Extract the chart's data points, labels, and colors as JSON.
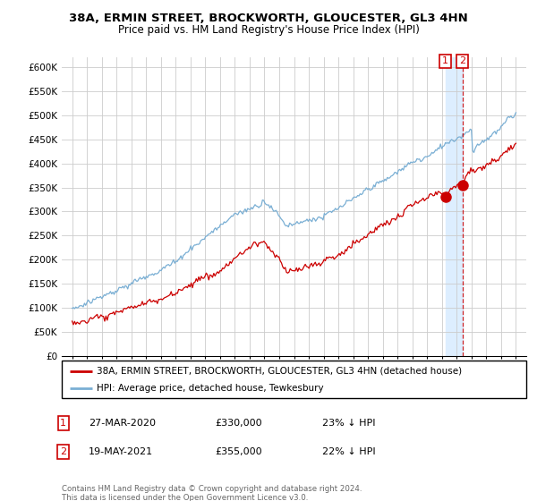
{
  "title": "38A, ERMIN STREET, BROCKWORTH, GLOUCESTER, GL3 4HN",
  "subtitle": "Price paid vs. HM Land Registry's House Price Index (HPI)",
  "legend_label_red": "38A, ERMIN STREET, BROCKWORTH, GLOUCESTER, GL3 4HN (detached house)",
  "legend_label_blue": "HPI: Average price, detached house, Tewkesbury",
  "footer": "Contains HM Land Registry data © Crown copyright and database right 2024.\nThis data is licensed under the Open Government Licence v3.0.",
  "annotation1_date": "27-MAR-2020",
  "annotation1_price": "£330,000",
  "annotation1_hpi": "23% ↓ HPI",
  "annotation2_date": "19-MAY-2021",
  "annotation2_price": "£355,000",
  "annotation2_hpi": "22% ↓ HPI",
  "red_color": "#cc0000",
  "blue_color": "#7aafd4",
  "shade_color": "#ddeeff",
  "ylim_min": 0,
  "ylim_max": 620000,
  "yticks": [
    0,
    50000,
    100000,
    150000,
    200000,
    250000,
    300000,
    350000,
    400000,
    450000,
    500000,
    550000,
    600000
  ],
  "ytick_labels": [
    "£0",
    "£50K",
    "£100K",
    "£150K",
    "£200K",
    "£250K",
    "£300K",
    "£350K",
    "£400K",
    "£450K",
    "£500K",
    "£550K",
    "£600K"
  ],
  "anno1_x": 2020.23,
  "anno1_y": 330000,
  "anno2_x": 2021.38,
  "anno2_y": 355000,
  "xmin": 1995,
  "xmax": 2025
}
